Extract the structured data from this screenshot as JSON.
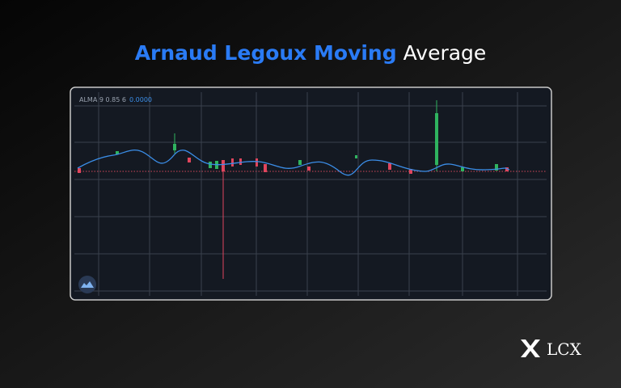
{
  "header": {
    "title_highlight": "Arnaud Legoux Moving",
    "title_rest": "Average"
  },
  "chart_panel": {
    "indicator_label": "ALMA 9 0.85 6",
    "indicator_value": "0.0000"
  },
  "footer": {
    "brand": "LCX"
  }
}
